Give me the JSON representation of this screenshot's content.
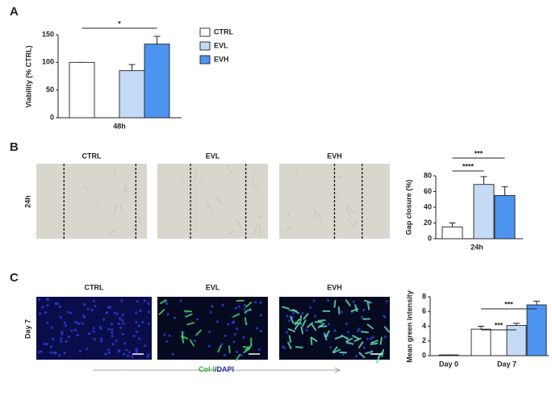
{
  "panels": [
    "A",
    "B",
    "C"
  ],
  "chart_data": [
    {
      "type": "bar",
      "ylabel": "Viability (% CTRL)",
      "categories": [
        "48h"
      ],
      "ylim": [
        0,
        150
      ],
      "yticks": [
        0,
        50,
        100,
        150
      ],
      "legend": "right",
      "series": [
        {
          "name": "CTRL",
          "color": "#ffffff",
          "values": [
            100
          ],
          "errors": [
            0
          ]
        },
        {
          "name": "EVL",
          "color": "#c5daf5",
          "values": [
            85
          ],
          "errors": [
            11
          ]
        },
        {
          "name": "EVH",
          "color": "#4d94f0",
          "values": [
            133
          ],
          "errors": [
            14
          ]
        }
      ],
      "annotations": [
        {
          "text": "*",
          "between": [
            "CTRL",
            "EVH"
          ]
        }
      ]
    },
    {
      "type": "bar",
      "ylabel": "Gap closure (%)",
      "categories": [
        "24h"
      ],
      "ylim": [
        0,
        80
      ],
      "yticks": [
        0,
        20,
        40,
        60,
        80
      ],
      "series": [
        {
          "name": "CTRL",
          "color": "#ffffff",
          "values": [
            15
          ],
          "errors": [
            5
          ]
        },
        {
          "name": "EVL",
          "color": "#c5daf5",
          "values": [
            69
          ],
          "errors": [
            10
          ]
        },
        {
          "name": "EVH",
          "color": "#4d94f0",
          "values": [
            55
          ],
          "errors": [
            11
          ]
        }
      ],
      "annotations": [
        {
          "text": "***",
          "between": [
            "CTRL",
            "EVH"
          ]
        },
        {
          "text": "****",
          "between": [
            "CTRL",
            "EVL"
          ]
        }
      ]
    },
    {
      "type": "bar",
      "ylabel": "Mean green intensity",
      "categories": [
        "Day 0",
        "Day 7"
      ],
      "ylim": [
        0,
        8
      ],
      "yticks": [
        0,
        2,
        4,
        6,
        8
      ],
      "series": [
        {
          "name": "CTRL",
          "color": "#ffffff",
          "values": [
            0.1,
            3.6
          ],
          "errors": [
            0,
            0.4
          ]
        },
        {
          "name": "EVL",
          "color": "#c5daf5",
          "values": [
            null,
            4.1
          ],
          "errors": [
            null,
            0.3
          ]
        },
        {
          "name": "EVH",
          "color": "#4d94f0",
          "values": [
            null,
            6.9
          ],
          "errors": [
            null,
            0.5
          ]
        }
      ],
      "annotations": [
        {
          "text": "***",
          "between": [
            "CTRL",
            "EVH"
          ]
        },
        {
          "text": "***",
          "between": [
            "CTRL",
            "EVL"
          ]
        }
      ]
    }
  ],
  "wound_images": {
    "row_label": "24h",
    "columns": [
      "CTRL",
      "EVL",
      "EVH"
    ]
  },
  "stain_images": {
    "row_label": "Day 7",
    "columns": [
      "CTRL",
      "EVL",
      "EVH"
    ],
    "caption": [
      "Col-I",
      "/DAPI"
    ]
  }
}
